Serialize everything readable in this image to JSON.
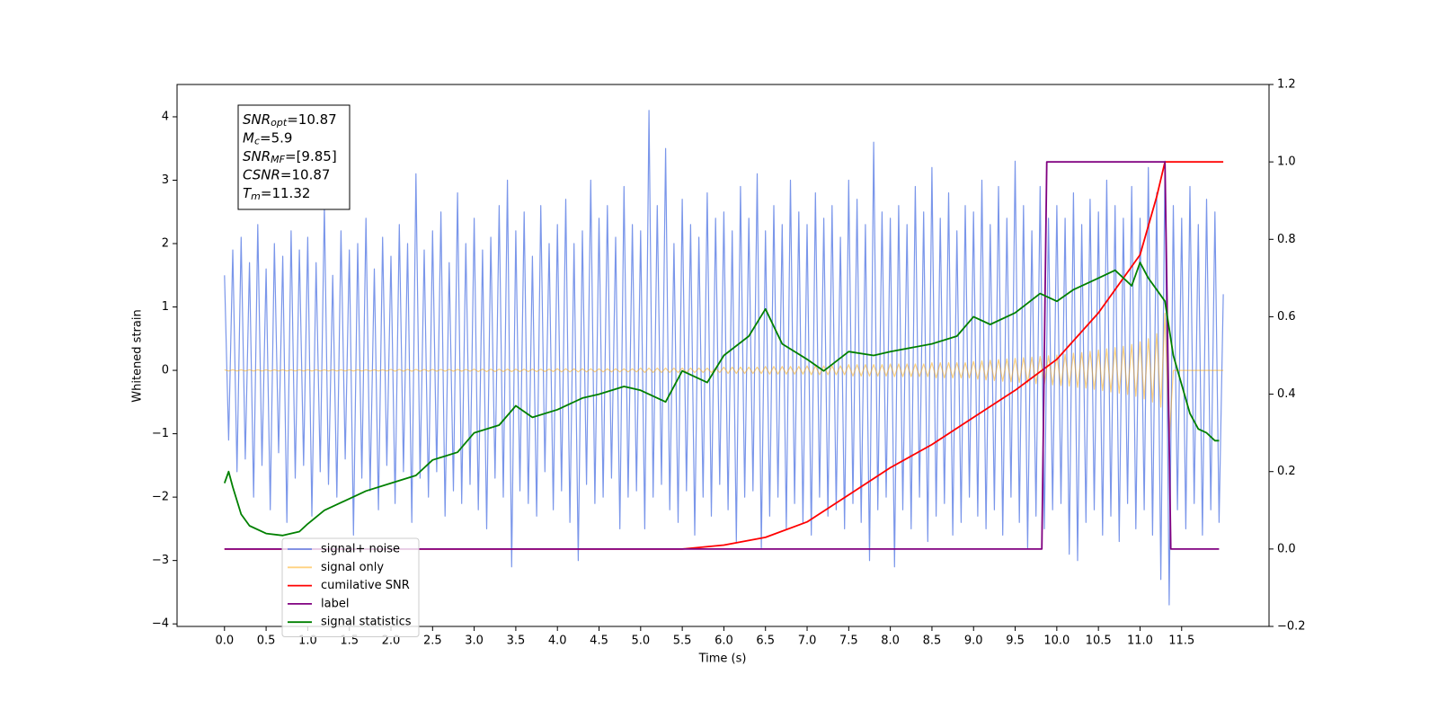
{
  "chart_data": {
    "type": "line",
    "xlabel": "Time (s)",
    "ylabel": "Whitened strain",
    "xlim": [
      -0.57,
      12.55
    ],
    "ylim": [
      -4.04,
      4.51
    ],
    "y2lim": [
      -0.2,
      1.2
    ],
    "xticks": [
      {
        "value": 0,
        "label": "0.0"
      },
      {
        "value": 0.5,
        "label": "0.5"
      },
      {
        "value": 1,
        "label": "1.0"
      },
      {
        "value": 1.5,
        "label": "1.5"
      },
      {
        "value": 2,
        "label": "2.0"
      },
      {
        "value": 2.5,
        "label": "2.5"
      },
      {
        "value": 3,
        "label": "3.0"
      },
      {
        "value": 3.5,
        "label": "3.5"
      },
      {
        "value": 4,
        "label": "4.0"
      },
      {
        "value": 4.5,
        "label": "4.5"
      },
      {
        "value": 5,
        "label": "5.0"
      },
      {
        "value": 5.5,
        "label": "5.5"
      },
      {
        "value": 6,
        "label": "6.0"
      },
      {
        "value": 6.5,
        "label": "6.5"
      },
      {
        "value": 7,
        "label": "7.0"
      },
      {
        "value": 7.5,
        "label": "7.5"
      },
      {
        "value": 8,
        "label": "8.0"
      },
      {
        "value": 8.5,
        "label": "8.5"
      },
      {
        "value": 9,
        "label": "9.0"
      },
      {
        "value": 9.5,
        "label": "9.5"
      },
      {
        "value": 10,
        "label": "10.0"
      },
      {
        "value": 10.5,
        "label": "10.5"
      },
      {
        "value": 11,
        "label": "11.0"
      },
      {
        "value": 11.5,
        "label": "11.5"
      }
    ],
    "yticks": [
      {
        "value": -4,
        "label": "−4"
      },
      {
        "value": -3,
        "label": "−3"
      },
      {
        "value": -2,
        "label": "−2"
      },
      {
        "value": -1,
        "label": "−1"
      },
      0,
      1,
      2,
      3,
      4
    ],
    "y2ticks": [
      {
        "value": -0.2,
        "label": "−0.2"
      },
      {
        "value": 0,
        "label": "0.0"
      },
      {
        "value": 0.2,
        "label": "0.2"
      },
      {
        "value": 0.4,
        "label": "0.4"
      },
      {
        "value": 0.6,
        "label": "0.6"
      },
      {
        "value": 0.8,
        "label": "0.8"
      },
      {
        "value": 1,
        "label": "1.0"
      },
      {
        "value": 1.2,
        "label": "1.2"
      }
    ],
    "legend": "lower left",
    "annotation": [
      {
        "text": "SNR",
        "sub": "opt",
        "value": "=10.87"
      },
      {
        "text": "M",
        "sub": "c",
        "value": "=5.9"
      },
      {
        "text": "SNR",
        "sub": "MF",
        "value": "=[9.85]"
      },
      {
        "text": "CSNR",
        "value": "=10.87"
      },
      {
        "text": "T",
        "sub": "m",
        "value": "=11.32"
      }
    ],
    "x": [
      0,
      0.05,
      0.1,
      0.15,
      0.2,
      0.25,
      0.3,
      0.35,
      0.4,
      0.45,
      0.5,
      0.55,
      0.6,
      0.65,
      0.7,
      0.75,
      0.8,
      0.85,
      0.9,
      0.95,
      1,
      1.05,
      1.1,
      1.15,
      1.2,
      1.25,
      1.3,
      1.35,
      1.4,
      1.45,
      1.5,
      1.55,
      1.6,
      1.65,
      1.7,
      1.75,
      1.8,
      1.85,
      1.9,
      1.95,
      2,
      2.05,
      2.1,
      2.15,
      2.2,
      2.25,
      2.3,
      2.35,
      2.4,
      2.45,
      2.5,
      2.55,
      2.6,
      2.65,
      2.7,
      2.75,
      2.8,
      2.85,
      2.9,
      2.95,
      3,
      3.05,
      3.1,
      3.15,
      3.2,
      3.25,
      3.3,
      3.35,
      3.4,
      3.45,
      3.5,
      3.55,
      3.6,
      3.65,
      3.7,
      3.75,
      3.8,
      3.85,
      3.9,
      3.95,
      4,
      4.05,
      4.1,
      4.15,
      4.2,
      4.25,
      4.3,
      4.35,
      4.4,
      4.45,
      4.5,
      4.55,
      4.6,
      4.65,
      4.7,
      4.75,
      4.8,
      4.85,
      4.9,
      4.95,
      5,
      5.05,
      5.1,
      5.15,
      5.2,
      5.25,
      5.3,
      5.35,
      5.4,
      5.45,
      5.5,
      5.55,
      5.6,
      5.65,
      5.7,
      5.75,
      5.8,
      5.85,
      5.9,
      5.95,
      6,
      6.05,
      6.1,
      6.15,
      6.2,
      6.25,
      6.3,
      6.35,
      6.4,
      6.45,
      6.5,
      6.55,
      6.6,
      6.65,
      6.7,
      6.75,
      6.8,
      6.85,
      6.9,
      6.95,
      7,
      7.05,
      7.1,
      7.15,
      7.2,
      7.25,
      7.3,
      7.35,
      7.4,
      7.45,
      7.5,
      7.55,
      7.6,
      7.65,
      7.7,
      7.75,
      7.8,
      7.85,
      7.9,
      7.95,
      8,
      8.05,
      8.1,
      8.15,
      8.2,
      8.25,
      8.3,
      8.35,
      8.4,
      8.45,
      8.5,
      8.55,
      8.6,
      8.65,
      8.7,
      8.75,
      8.8,
      8.85,
      8.9,
      8.95,
      9,
      9.05,
      9.1,
      9.15,
      9.2,
      9.25,
      9.3,
      9.35,
      9.4,
      9.45,
      9.5,
      9.55,
      9.6,
      9.65,
      9.7,
      9.75,
      9.8,
      9.85,
      9.9,
      9.95,
      10,
      10.05,
      10.1,
      10.15,
      10.2,
      10.25,
      10.3,
      10.35,
      10.4,
      10.45,
      10.5,
      10.55,
      10.6,
      10.65,
      10.7,
      10.75,
      10.8,
      10.85,
      10.9,
      10.95,
      11,
      11.05,
      11.1,
      11.15,
      11.2,
      11.25,
      11.3,
      11.35,
      11.4,
      11.45,
      11.5,
      11.55,
      11.6,
      11.65,
      11.7,
      11.75,
      11.8,
      11.85,
      11.9,
      11.95,
      12
    ],
    "series": [
      {
        "name": "signal+ noise",
        "color": "#4169e1",
        "alpha": 0.7,
        "values": [
          1.5,
          -1.1,
          1.9,
          -1.6,
          2.1,
          -1.4,
          1.7,
          -2.0,
          2.3,
          -1.5,
          1.6,
          -2.2,
          2.0,
          -1.3,
          1.8,
          -2.4,
          2.2,
          -1.7,
          1.9,
          -1.5,
          2.1,
          -2.3,
          1.7,
          -1.6,
          2.6,
          -1.8,
          1.5,
          -2.0,
          2.2,
          -1.4,
          1.9,
          -2.6,
          2.0,
          -1.7,
          2.4,
          -1.9,
          1.6,
          -2.2,
          2.1,
          -1.5,
          1.8,
          -2.1,
          2.3,
          -1.6,
          2.0,
          -2.4,
          3.1,
          -1.7,
          1.9,
          -2.0,
          2.2,
          -1.6,
          2.5,
          -2.3,
          1.7,
          -1.9,
          2.8,
          -2.1,
          2.0,
          -1.8,
          2.4,
          -2.2,
          1.9,
          -2.5,
          2.1,
          -1.7,
          2.6,
          -2.0,
          3.0,
          -3.1,
          2.2,
          -1.9,
          2.5,
          -2.1,
          1.8,
          -2.3,
          2.6,
          -1.6,
          2.0,
          -2.2,
          2.3,
          -1.9,
          2.7,
          -2.4,
          2.0,
          -3.0,
          2.2,
          -1.8,
          3.0,
          -2.1,
          2.4,
          -2.0,
          2.6,
          -1.7,
          2.1,
          -2.5,
          2.9,
          -2.0,
          2.3,
          -1.9,
          2.2,
          -2.5,
          4.1,
          -2.0,
          2.6,
          -1.8,
          3.5,
          -2.2,
          2.0,
          -2.4,
          2.7,
          -1.9,
          2.3,
          -2.6,
          2.1,
          -2.0,
          2.8,
          -2.3,
          2.4,
          -1.8,
          2.5,
          -2.2,
          2.2,
          -2.7,
          2.9,
          -2.0,
          2.4,
          -1.9,
          3.1,
          -2.8,
          2.2,
          -2.3,
          2.6,
          -2.0,
          2.3,
          -2.5,
          3.0,
          -2.1,
          2.5,
          -2.4,
          2.3,
          -2.6,
          2.8,
          -2.0,
          2.4,
          -2.3,
          2.6,
          -2.2,
          2.1,
          -2.5,
          3.0,
          -2.1,
          2.7,
          -2.4,
          2.3,
          -3.0,
          3.6,
          -2.2,
          2.5,
          -2.0,
          2.4,
          -3.1,
          2.6,
          -2.2,
          2.3,
          -2.5,
          2.9,
          -2.0,
          2.5,
          -2.7,
          3.2,
          -2.3,
          2.4,
          -2.1,
          2.8,
          -2.6,
          2.2,
          -2.4,
          2.6,
          -2.0,
          2.5,
          -2.3,
          3.0,
          -2.5,
          2.3,
          -2.2,
          2.9,
          -2.6,
          2.4,
          -2.0,
          3.3,
          -2.4,
          2.6,
          -2.8,
          2.2,
          -2.3,
          2.9,
          -2.5,
          2.4,
          -2.2,
          2.6,
          -2.1,
          2.4,
          -2.9,
          2.8,
          -3.0,
          2.3,
          -2.4,
          2.7,
          -2.2,
          2.5,
          -2.6,
          3.0,
          -2.3,
          2.6,
          -2.7,
          2.4,
          -2.1,
          2.9,
          -2.5,
          2.4,
          -2.2,
          3.2,
          -2.6,
          2.8,
          -3.3,
          3.3,
          -3.7,
          2.6,
          -2.2,
          2.4,
          -2.5,
          2.9,
          -2.1,
          2.3,
          -2.6,
          2.7,
          -2.2,
          2.5,
          -2.4,
          1.2
        ]
      },
      {
        "name": "signal only",
        "color": "#ffa500",
        "alpha": 0.5,
        "values": [
          0.01,
          -0.01,
          0.01,
          -0.01,
          0.01,
          -0.01,
          0.01,
          -0.01,
          0.01,
          -0.01,
          0.01,
          -0.01,
          0.01,
          -0.01,
          0.01,
          -0.01,
          0.01,
          -0.01,
          0.01,
          -0.01,
          0.01,
          -0.01,
          0.01,
          -0.01,
          0.01,
          -0.01,
          0.01,
          -0.01,
          0.01,
          -0.01,
          0.01,
          -0.01,
          0.01,
          -0.01,
          0.01,
          -0.01,
          0.01,
          -0.01,
          0.01,
          -0.01,
          0.015,
          -0.015,
          0.015,
          -0.015,
          0.015,
          -0.015,
          0.015,
          -0.015,
          0.015,
          -0.015,
          0.015,
          -0.015,
          0.015,
          -0.015,
          0.015,
          -0.015,
          0.015,
          -0.015,
          0.015,
          -0.015,
          0.02,
          -0.02,
          0.02,
          -0.02,
          0.02,
          -0.02,
          0.02,
          -0.02,
          0.02,
          -0.02,
          0.02,
          -0.02,
          0.02,
          -0.02,
          0.02,
          -0.02,
          0.02,
          -0.02,
          0.02,
          -0.02,
          0.025,
          -0.025,
          0.025,
          -0.025,
          0.025,
          -0.025,
          0.025,
          -0.025,
          0.025,
          -0.025,
          0.025,
          -0.025,
          0.025,
          -0.025,
          0.025,
          -0.025,
          0.025,
          -0.025,
          0.025,
          -0.025,
          0.035,
          -0.035,
          0.035,
          -0.035,
          0.035,
          -0.035,
          0.035,
          -0.035,
          0.035,
          -0.035,
          0.035,
          -0.035,
          0.035,
          -0.035,
          0.035,
          -0.035,
          0.035,
          -0.035,
          0.035,
          -0.035,
          0.05,
          -0.05,
          0.05,
          -0.05,
          0.05,
          -0.05,
          0.05,
          -0.05,
          0.05,
          -0.05,
          0.06,
          -0.06,
          0.06,
          -0.06,
          0.06,
          -0.06,
          0.06,
          -0.06,
          0.06,
          -0.06,
          0.07,
          -0.07,
          0.07,
          -0.07,
          0.07,
          -0.07,
          0.07,
          -0.07,
          0.07,
          -0.07,
          0.09,
          -0.09,
          0.09,
          -0.09,
          0.09,
          -0.09,
          0.09,
          -0.09,
          0.09,
          -0.09,
          0.1,
          -0.1,
          0.1,
          -0.1,
          0.1,
          -0.1,
          0.1,
          -0.1,
          0.1,
          -0.1,
          0.12,
          -0.12,
          0.12,
          -0.12,
          0.12,
          -0.12,
          0.12,
          -0.12,
          0.12,
          -0.12,
          0.14,
          -0.14,
          0.15,
          -0.15,
          0.16,
          -0.16,
          0.17,
          -0.17,
          0.18,
          -0.18,
          0.19,
          -0.19,
          0.2,
          -0.2,
          0.21,
          -0.21,
          0.22,
          -0.22,
          0.23,
          -0.23,
          0.24,
          -0.24,
          0.25,
          -0.25,
          0.27,
          -0.27,
          0.28,
          -0.28,
          0.3,
          -0.3,
          0.32,
          -0.32,
          0.34,
          -0.34,
          0.36,
          -0.36,
          0.38,
          -0.38,
          0.41,
          -0.41,
          0.45,
          -0.45,
          0.5,
          -0.5,
          0.58,
          -0.58,
          0.9,
          -1.1,
          0,
          0,
          0,
          0,
          0,
          0,
          0,
          0,
          0,
          0,
          0,
          0,
          0
        ]
      },
      {
        "name": "cumilative SNR",
        "color": "#ff0000",
        "axis": "y2",
        "x": [
          0,
          5.5,
          6,
          6.5,
          7,
          7.5,
          8,
          8.5,
          9,
          9.5,
          10,
          10.5,
          11,
          11.2,
          11.3,
          12
        ],
        "values": [
          0,
          0,
          0.01,
          0.03,
          0.07,
          0.14,
          0.21,
          0.27,
          0.34,
          0.41,
          0.49,
          0.61,
          0.76,
          0.91,
          1,
          1
        ]
      },
      {
        "name": "label",
        "color": "#800080",
        "axis": "y2",
        "x": [
          0,
          9.82,
          9.88,
          11.3,
          11.37,
          11.95
        ],
        "values": [
          0,
          0,
          1,
          1,
          0,
          0
        ]
      },
      {
        "name": "signal statistics",
        "color": "#008000",
        "axis": "y2",
        "x": [
          0,
          0.05,
          0.1,
          0.2,
          0.3,
          0.5,
          0.7,
          0.9,
          1,
          1.2,
          1.5,
          1.7,
          2,
          2.3,
          2.5,
          2.8,
          3,
          3.3,
          3.5,
          3.7,
          4,
          4.3,
          4.5,
          4.8,
          5,
          5.3,
          5.5,
          5.8,
          6,
          6.3,
          6.5,
          6.7,
          7,
          7.2,
          7.5,
          7.8,
          8,
          8.5,
          8.8,
          9,
          9.2,
          9.5,
          9.8,
          10,
          10.2,
          10.5,
          10.7,
          10.9,
          11,
          11.1,
          11.2,
          11.3,
          11.4,
          11.6,
          11.7,
          11.8,
          11.9,
          11.95
        ],
        "values": [
          0.17,
          0.2,
          0.16,
          0.09,
          0.06,
          0.04,
          0.035,
          0.045,
          0.065,
          0.1,
          0.13,
          0.15,
          0.17,
          0.19,
          0.23,
          0.25,
          0.3,
          0.32,
          0.37,
          0.34,
          0.36,
          0.39,
          0.4,
          0.42,
          0.41,
          0.38,
          0.46,
          0.43,
          0.5,
          0.55,
          0.62,
          0.53,
          0.49,
          0.46,
          0.51,
          0.5,
          0.51,
          0.53,
          0.55,
          0.6,
          0.58,
          0.61,
          0.66,
          0.64,
          0.67,
          0.7,
          0.72,
          0.68,
          0.74,
          0.7,
          0.67,
          0.64,
          0.5,
          0.35,
          0.31,
          0.3,
          0.28,
          0.28
        ]
      }
    ]
  }
}
